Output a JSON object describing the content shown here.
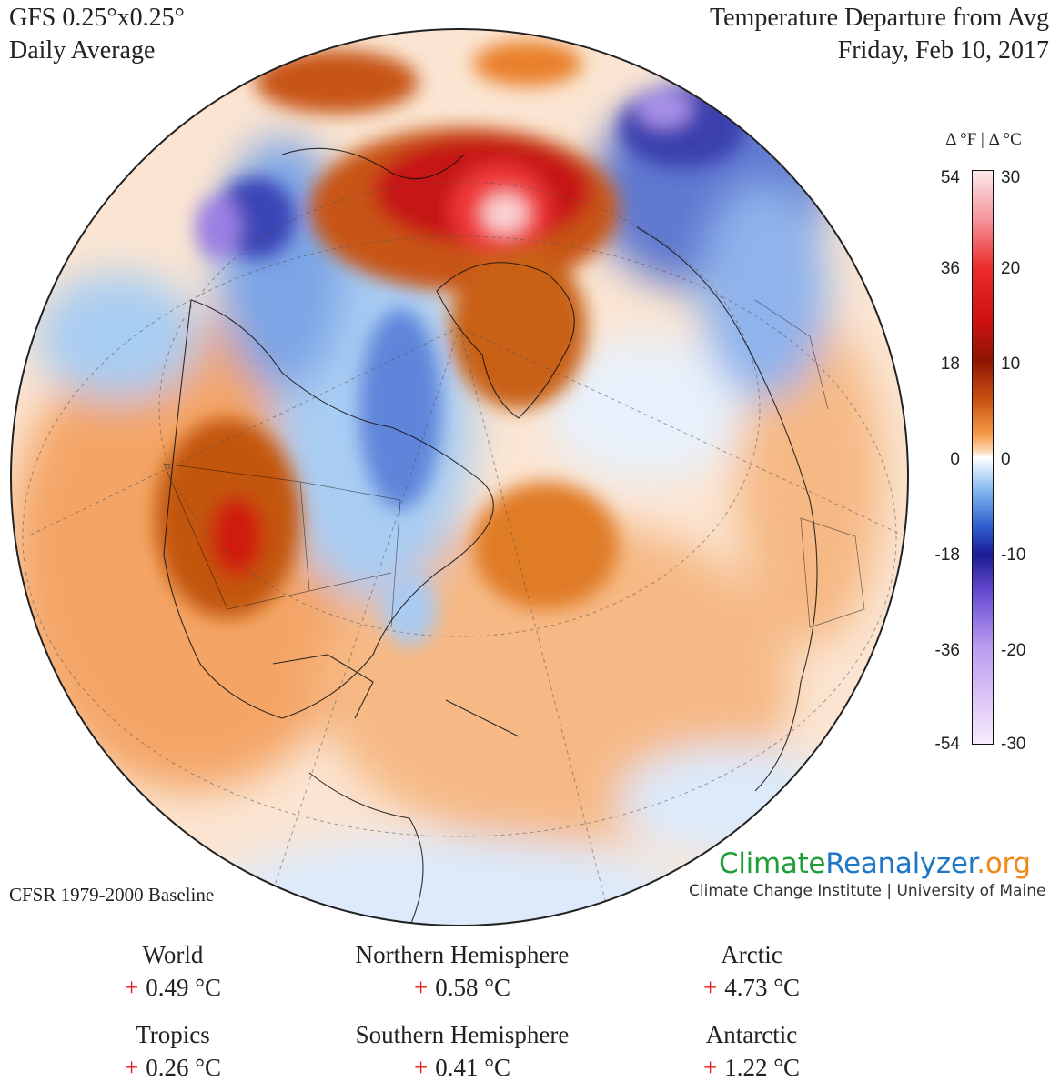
{
  "header": {
    "model": "GFS 0.25°x0.25°",
    "period": "Daily Average",
    "title": "Temperature Departure from Avg",
    "date": "Friday, Feb 10, 2017"
  },
  "colorbar": {
    "title": "Δ °F  |  Δ °C",
    "ticks_f": [
      "54",
      "36",
      "18",
      "0",
      "-18",
      "-36",
      "-54"
    ],
    "ticks_c": [
      "30",
      "20",
      "10",
      "0",
      "-10",
      "-20",
      "-30"
    ],
    "colors": {
      "max": "#fbe8ea",
      "warm": "#ec2a2a",
      "dark_warm": "#8e1404",
      "orange": "#f59a46",
      "zero": "#ffffff",
      "light_cool": "#7fb4ee",
      "cool": "#1c1b95",
      "purple": "#6c4fd4",
      "min": "#f9eafc"
    }
  },
  "footer": {
    "baseline": "CFSR 1979-2000 Baseline",
    "logo_part1": "Climate",
    "logo_part2": "Reanalyzer",
    "logo_part3": ".org",
    "institution": "Climate Change Institute | University of Maine"
  },
  "stats": [
    {
      "name": "World",
      "sign": "+",
      "value": "0.49 °C"
    },
    {
      "name": "Northern Hemisphere",
      "sign": "+",
      "value": "0.58 °C"
    },
    {
      "name": "Arctic",
      "sign": "+",
      "value": "4.73 °C"
    },
    {
      "name": "Tropics",
      "sign": "+",
      "value": "0.26 °C"
    },
    {
      "name": "Southern Hemisphere",
      "sign": "+",
      "value": "0.41 °C"
    },
    {
      "name": "Antarctic",
      "sign": "+",
      "value": "1.22 °C"
    }
  ]
}
